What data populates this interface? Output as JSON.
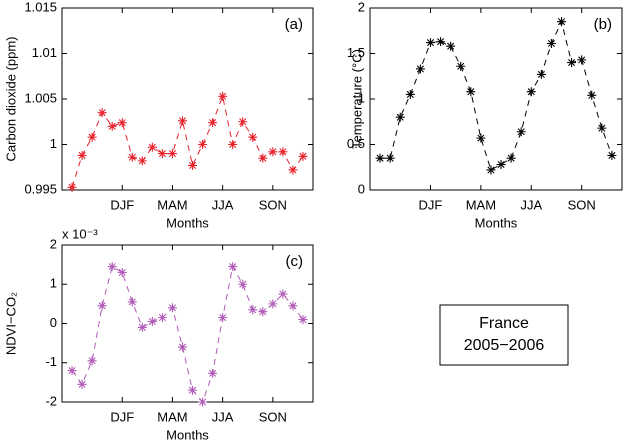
{
  "chart_data": [
    {
      "type": "line",
      "panel_label": "(a)",
      "ylabel": "Carbon dioxide (ppm)",
      "xlabel": "Months",
      "x": [
        1,
        2,
        3,
        4,
        5,
        6,
        7,
        8,
        9,
        10,
        11,
        12,
        13,
        14,
        15,
        16,
        17,
        18,
        19,
        20,
        21,
        22,
        23,
        24
      ],
      "series": [
        {
          "color": "#e8212a",
          "values": [
            0.9953,
            0.9988,
            1.0008,
            1.0035,
            1.002,
            1.0024,
            0.9986,
            0.9982,
            0.9997,
            0.999,
            0.999,
            1.0026,
            0.9977,
            1.0,
            1.0024,
            1.0053,
            1.0,
            1.0025,
            1.0008,
            0.9985,
            0.9992,
            0.9992,
            0.9972,
            0.9987
          ]
        }
      ],
      "xlim": [
        0,
        25
      ],
      "xticks": [
        {
          "value": 6,
          "label": "DJF"
        },
        {
          "value": 11,
          "label": "MAM"
        },
        {
          "value": 16,
          "label": "JJA"
        },
        {
          "value": 21,
          "label": "SON"
        }
      ],
      "ylim": [
        0.995,
        1.015
      ],
      "yticks": [
        0.995,
        1,
        1.005,
        1.01,
        1.015
      ]
    },
    {
      "type": "line",
      "panel_label": "(b)",
      "ylabel": "Temperature (°C)",
      "xlabel": "Months",
      "x": [
        1,
        2,
        3,
        4,
        5,
        6,
        7,
        8,
        9,
        10,
        11,
        12,
        13,
        14,
        15,
        16,
        17,
        18,
        19,
        20,
        21,
        22,
        23,
        24
      ],
      "series": [
        {
          "color": "#000000",
          "values": [
            0.35,
            0.35,
            0.8,
            1.05,
            1.33,
            1.62,
            1.63,
            1.58,
            1.36,
            1.08,
            0.57,
            0.22,
            0.28,
            0.35,
            0.64,
            1.08,
            1.27,
            1.61,
            1.85,
            1.4,
            1.43,
            1.04,
            0.68,
            0.38
          ]
        }
      ],
      "xlim": [
        0,
        25
      ],
      "xticks": [
        {
          "value": 6,
          "label": "DJF"
        },
        {
          "value": 11,
          "label": "MAM"
        },
        {
          "value": 16,
          "label": "JJA"
        },
        {
          "value": 21,
          "label": "SON"
        }
      ],
      "ylim": [
        0,
        2
      ],
      "yticks": [
        0,
        0.5,
        1,
        1.5,
        2
      ]
    },
    {
      "type": "line",
      "panel_label": "(c)",
      "ylabel": "NDVI−CO₂",
      "xlabel": "Months",
      "y_multiplier": "x 10⁻³",
      "x": [
        1,
        2,
        3,
        4,
        5,
        6,
        7,
        8,
        9,
        10,
        11,
        12,
        13,
        14,
        15,
        16,
        17,
        18,
        19,
        20,
        21,
        22,
        23,
        24
      ],
      "series": [
        {
          "color": "#b05bb8",
          "values": [
            -1.2,
            -1.55,
            -0.95,
            0.45,
            1.45,
            1.3,
            0.55,
            -0.1,
            0.05,
            0.15,
            0.4,
            -0.6,
            -1.7,
            -2.0,
            -1.27,
            0.15,
            1.45,
            1.0,
            0.35,
            0.3,
            0.5,
            0.75,
            0.45,
            0.1
          ]
        }
      ],
      "xlim": [
        0,
        25
      ],
      "xticks": [
        {
          "value": 6,
          "label": "DJF"
        },
        {
          "value": 11,
          "label": "MAM"
        },
        {
          "value": 16,
          "label": "JJA"
        },
        {
          "value": 21,
          "label": "SON"
        }
      ],
      "ylim": [
        -2,
        2
      ],
      "yticks": [
        -2,
        -1,
        0,
        1,
        2
      ]
    }
  ],
  "note": {
    "lines": [
      "France",
      "2005−2006"
    ]
  }
}
